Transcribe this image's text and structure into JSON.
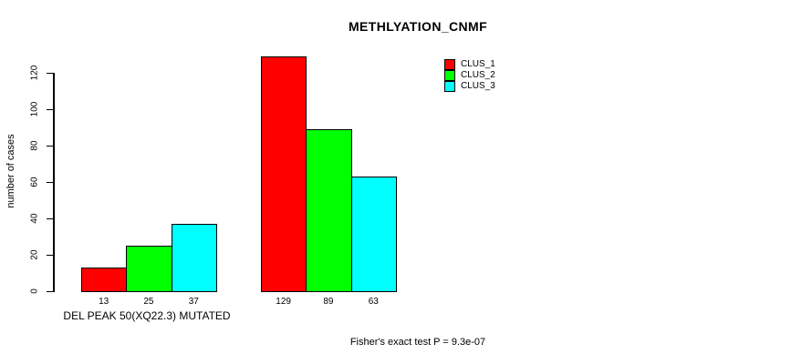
{
  "chart_data": {
    "type": "bar",
    "title": "METHLYATION_CNMF",
    "ylabel": "number of cases",
    "xlabel": "",
    "categories": [
      "DEL PEAK 50(XQ22.3) MUTATED",
      ""
    ],
    "series": [
      {
        "name": "CLUS_1",
        "color": "#FF0000",
        "values": [
          13,
          129
        ]
      },
      {
        "name": "CLUS_2",
        "color": "#00FF00",
        "values": [
          25,
          89
        ]
      },
      {
        "name": "CLUS_3",
        "color": "#00FFFF",
        "values": [
          37,
          63
        ]
      }
    ],
    "bar_value_labels": [
      [
        13,
        25,
        37
      ],
      [
        129,
        89,
        63
      ]
    ],
    "yticks": [
      0,
      20,
      40,
      60,
      80,
      100,
      120
    ],
    "ylim": [
      0,
      130
    ],
    "grid": false,
    "legend_position": "top-right",
    "annotation": "Fisher's exact test P = 9.3e-07"
  }
}
